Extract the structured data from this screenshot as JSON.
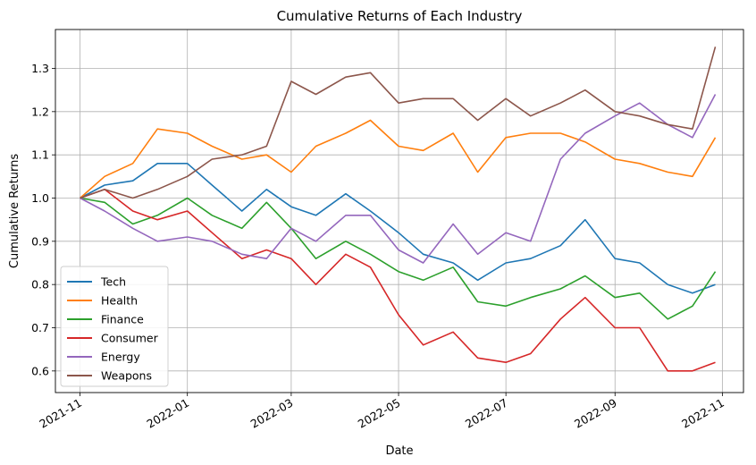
{
  "chart_data": {
    "type": "line",
    "title": "Cumulative Returns of Each Industry",
    "xlabel": "Date",
    "ylabel": "Cumulative Returns",
    "x_ticks": [
      "2021-11",
      "2022-01",
      "2022-03",
      "2022-05",
      "2022-07",
      "2022-09",
      "2022-11"
    ],
    "xlim": [
      "2021-10-18",
      "2022-11-13"
    ],
    "ylim": [
      0.55,
      1.39
    ],
    "y_ticks": [
      0.6,
      0.7,
      0.8,
      0.9,
      1.0,
      1.1,
      1.2,
      1.3
    ],
    "y_tick_labels": [
      "0.6",
      "0.7",
      "0.8",
      "0.9",
      "1.0",
      "1.1",
      "1.2",
      "1.3"
    ],
    "grid": true,
    "legend_position": "lower-left",
    "series": [
      {
        "name": "Tech",
        "color": "#1f77b4",
        "points": [
          [
            "2021-11-01",
            1.0
          ],
          [
            "2021-11-15",
            1.03
          ],
          [
            "2021-12-01",
            1.04
          ],
          [
            "2021-12-15",
            1.08
          ],
          [
            "2022-01-01",
            1.08
          ],
          [
            "2022-01-15",
            1.03
          ],
          [
            "2022-02-01",
            0.97
          ],
          [
            "2022-02-15",
            1.02
          ],
          [
            "2022-03-01",
            0.98
          ],
          [
            "2022-03-15",
            0.96
          ],
          [
            "2022-04-01",
            1.01
          ],
          [
            "2022-04-15",
            0.97
          ],
          [
            "2022-05-01",
            0.92
          ],
          [
            "2022-05-15",
            0.87
          ],
          [
            "2022-06-01",
            0.85
          ],
          [
            "2022-06-15",
            0.81
          ],
          [
            "2022-07-01",
            0.85
          ],
          [
            "2022-07-15",
            0.86
          ],
          [
            "2022-08-01",
            0.89
          ],
          [
            "2022-08-15",
            0.95
          ],
          [
            "2022-09-01",
            0.86
          ],
          [
            "2022-09-15",
            0.85
          ],
          [
            "2022-10-01",
            0.8
          ],
          [
            "2022-10-15",
            0.78
          ],
          [
            "2022-10-28",
            0.8
          ]
        ]
      },
      {
        "name": "Health",
        "color": "#ff7f0e",
        "points": [
          [
            "2021-11-01",
            1.0
          ],
          [
            "2021-11-15",
            1.05
          ],
          [
            "2021-12-01",
            1.08
          ],
          [
            "2021-12-15",
            1.16
          ],
          [
            "2022-01-01",
            1.15
          ],
          [
            "2022-01-15",
            1.12
          ],
          [
            "2022-02-01",
            1.09
          ],
          [
            "2022-02-15",
            1.1
          ],
          [
            "2022-03-01",
            1.06
          ],
          [
            "2022-03-15",
            1.12
          ],
          [
            "2022-04-01",
            1.15
          ],
          [
            "2022-04-15",
            1.18
          ],
          [
            "2022-05-01",
            1.12
          ],
          [
            "2022-05-15",
            1.11
          ],
          [
            "2022-06-01",
            1.15
          ],
          [
            "2022-06-15",
            1.06
          ],
          [
            "2022-07-01",
            1.14
          ],
          [
            "2022-07-15",
            1.15
          ],
          [
            "2022-08-01",
            1.15
          ],
          [
            "2022-08-15",
            1.13
          ],
          [
            "2022-09-01",
            1.09
          ],
          [
            "2022-09-15",
            1.08
          ],
          [
            "2022-10-01",
            1.06
          ],
          [
            "2022-10-15",
            1.05
          ],
          [
            "2022-10-28",
            1.14
          ]
        ]
      },
      {
        "name": "Finance",
        "color": "#2ca02c",
        "points": [
          [
            "2021-11-01",
            1.0
          ],
          [
            "2021-11-15",
            0.99
          ],
          [
            "2021-12-01",
            0.94
          ],
          [
            "2021-12-15",
            0.96
          ],
          [
            "2022-01-01",
            1.0
          ],
          [
            "2022-01-15",
            0.96
          ],
          [
            "2022-02-01",
            0.93
          ],
          [
            "2022-02-15",
            0.99
          ],
          [
            "2022-03-01",
            0.93
          ],
          [
            "2022-03-15",
            0.86
          ],
          [
            "2022-04-01",
            0.9
          ],
          [
            "2022-04-15",
            0.87
          ],
          [
            "2022-05-01",
            0.83
          ],
          [
            "2022-05-15",
            0.81
          ],
          [
            "2022-06-01",
            0.84
          ],
          [
            "2022-06-15",
            0.76
          ],
          [
            "2022-07-01",
            0.75
          ],
          [
            "2022-07-15",
            0.77
          ],
          [
            "2022-08-01",
            0.79
          ],
          [
            "2022-08-15",
            0.82
          ],
          [
            "2022-09-01",
            0.77
          ],
          [
            "2022-09-15",
            0.78
          ],
          [
            "2022-10-01",
            0.72
          ],
          [
            "2022-10-15",
            0.75
          ],
          [
            "2022-10-28",
            0.83
          ]
        ]
      },
      {
        "name": "Consumer",
        "color": "#d62728",
        "points": [
          [
            "2021-11-01",
            1.0
          ],
          [
            "2021-11-15",
            1.02
          ],
          [
            "2021-12-01",
            0.97
          ],
          [
            "2021-12-15",
            0.95
          ],
          [
            "2022-01-01",
            0.97
          ],
          [
            "2022-01-15",
            0.92
          ],
          [
            "2022-02-01",
            0.86
          ],
          [
            "2022-02-15",
            0.88
          ],
          [
            "2022-03-01",
            0.86
          ],
          [
            "2022-03-15",
            0.8
          ],
          [
            "2022-04-01",
            0.87
          ],
          [
            "2022-04-15",
            0.84
          ],
          [
            "2022-05-01",
            0.73
          ],
          [
            "2022-05-15",
            0.66
          ],
          [
            "2022-06-01",
            0.69
          ],
          [
            "2022-06-15",
            0.63
          ],
          [
            "2022-07-01",
            0.62
          ],
          [
            "2022-07-15",
            0.64
          ],
          [
            "2022-08-01",
            0.72
          ],
          [
            "2022-08-15",
            0.77
          ],
          [
            "2022-09-01",
            0.7
          ],
          [
            "2022-09-15",
            0.7
          ],
          [
            "2022-10-01",
            0.6
          ],
          [
            "2022-10-15",
            0.6
          ],
          [
            "2022-10-28",
            0.62
          ]
        ]
      },
      {
        "name": "Energy",
        "color": "#9467bd",
        "points": [
          [
            "2021-11-01",
            1.0
          ],
          [
            "2021-11-15",
            0.97
          ],
          [
            "2021-12-01",
            0.93
          ],
          [
            "2021-12-15",
            0.9
          ],
          [
            "2022-01-01",
            0.91
          ],
          [
            "2022-01-15",
            0.9
          ],
          [
            "2022-02-01",
            0.87
          ],
          [
            "2022-02-15",
            0.86
          ],
          [
            "2022-03-01",
            0.93
          ],
          [
            "2022-03-15",
            0.9
          ],
          [
            "2022-04-01",
            0.96
          ],
          [
            "2022-04-15",
            0.96
          ],
          [
            "2022-05-01",
            0.88
          ],
          [
            "2022-05-15",
            0.85
          ],
          [
            "2022-06-01",
            0.94
          ],
          [
            "2022-06-15",
            0.87
          ],
          [
            "2022-07-01",
            0.92
          ],
          [
            "2022-07-15",
            0.9
          ],
          [
            "2022-08-01",
            1.09
          ],
          [
            "2022-08-15",
            1.15
          ],
          [
            "2022-09-01",
            1.19
          ],
          [
            "2022-09-15",
            1.22
          ],
          [
            "2022-10-01",
            1.17
          ],
          [
            "2022-10-15",
            1.14
          ],
          [
            "2022-10-28",
            1.24
          ]
        ]
      },
      {
        "name": "Weapons",
        "color": "#8c564b",
        "points": [
          [
            "2021-11-01",
            1.0
          ],
          [
            "2021-11-15",
            1.02
          ],
          [
            "2021-12-01",
            1.0
          ],
          [
            "2021-12-15",
            1.02
          ],
          [
            "2022-01-01",
            1.05
          ],
          [
            "2022-01-15",
            1.09
          ],
          [
            "2022-02-01",
            1.1
          ],
          [
            "2022-02-15",
            1.12
          ],
          [
            "2022-03-01",
            1.27
          ],
          [
            "2022-03-15",
            1.24
          ],
          [
            "2022-04-01",
            1.28
          ],
          [
            "2022-04-15",
            1.29
          ],
          [
            "2022-05-01",
            1.22
          ],
          [
            "2022-05-15",
            1.23
          ],
          [
            "2022-06-01",
            1.23
          ],
          [
            "2022-06-15",
            1.18
          ],
          [
            "2022-07-01",
            1.23
          ],
          [
            "2022-07-15",
            1.19
          ],
          [
            "2022-08-01",
            1.22
          ],
          [
            "2022-08-15",
            1.25
          ],
          [
            "2022-09-01",
            1.2
          ],
          [
            "2022-09-15",
            1.19
          ],
          [
            "2022-10-01",
            1.17
          ],
          [
            "2022-10-15",
            1.16
          ],
          [
            "2022-10-28",
            1.35
          ]
        ]
      }
    ]
  }
}
